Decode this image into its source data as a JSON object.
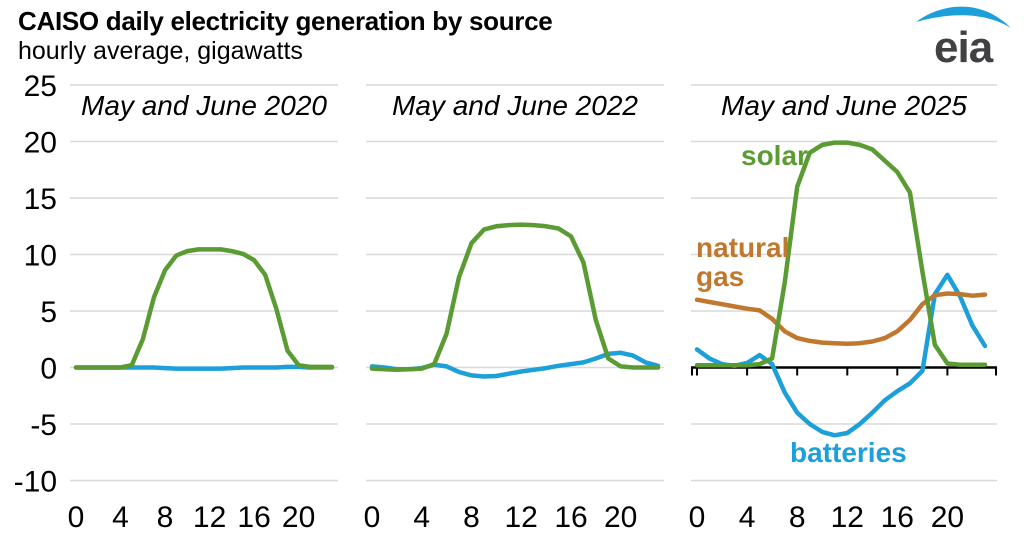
{
  "header": {
    "title": "CAISO daily electricity generation by source",
    "subtitle": "hourly average, gigawatts"
  },
  "logo": {
    "text": "eia"
  },
  "colors": {
    "solar": "#5b9b33",
    "batteries": "#1d9fd9",
    "natural_gas": "#c0782e",
    "gridline": "#d9d9d9",
    "axis": "#000000",
    "logo_text": "#414042",
    "logo_swoosh": "#1d9fd9"
  },
  "chart_data": {
    "type": "line",
    "title": "CAISO daily electricity generation by source",
    "subtitle": "hourly average, gigawatts",
    "ylabel": "gigawatts",
    "ylim": [
      -10,
      25
    ],
    "yticks": [
      25,
      20,
      15,
      10,
      5,
      0,
      -5,
      -10
    ],
    "xticks": [
      0,
      4,
      8,
      12,
      16,
      20
    ],
    "x": [
      0,
      1,
      2,
      3,
      4,
      5,
      6,
      7,
      8,
      9,
      10,
      11,
      12,
      13,
      14,
      15,
      16,
      17,
      18,
      19,
      20,
      21,
      22,
      23
    ],
    "grid": "horizontal",
    "panels": [
      {
        "title": "May and June 2020",
        "zero_axis": false,
        "series": [
          {
            "name": "batteries",
            "color_key": "batteries",
            "values": [
              0,
              0,
              0,
              0,
              0,
              0,
              0,
              0,
              -0.05,
              -0.1,
              -0.1,
              -0.1,
              -0.1,
              -0.1,
              -0.05,
              0,
              0,
              0,
              0,
              0.05,
              0.05,
              0,
              0,
              0
            ]
          },
          {
            "name": "solar",
            "color_key": "solar",
            "values": [
              0,
              0,
              0,
              0,
              0,
              0.2,
              2.5,
              6.2,
              8.6,
              9.9,
              10.3,
              10.45,
              10.45,
              10.45,
              10.3,
              10.05,
              9.5,
              8.2,
              5.2,
              1.5,
              0.2,
              0.05,
              0.05,
              0.05
            ]
          }
        ]
      },
      {
        "title": "May and June 2022",
        "zero_axis": false,
        "series": [
          {
            "name": "batteries",
            "color_key": "batteries",
            "values": [
              0.1,
              0,
              -0.15,
              -0.15,
              -0.05,
              0.25,
              0.1,
              -0.4,
              -0.7,
              -0.8,
              -0.75,
              -0.55,
              -0.35,
              -0.2,
              -0.05,
              0.15,
              0.3,
              0.45,
              0.8,
              1.2,
              1.3,
              1.05,
              0.45,
              0.15
            ]
          },
          {
            "name": "solar",
            "color_key": "solar",
            "values": [
              -0.1,
              -0.15,
              -0.2,
              -0.15,
              -0.1,
              0.3,
              3,
              8,
              11,
              12.2,
              12.5,
              12.6,
              12.65,
              12.6,
              12.5,
              12.3,
              11.6,
              9.3,
              4.2,
              0.8,
              0.1,
              0,
              0,
              0
            ]
          }
        ]
      },
      {
        "title": "May and June 2025",
        "zero_axis": true,
        "series": [
          {
            "name": "batteries",
            "color_key": "batteries",
            "values": [
              1.6,
              0.8,
              0.3,
              0.15,
              0.4,
              1.1,
              0.3,
              -2.2,
              -4.0,
              -5.0,
              -5.7,
              -6.0,
              -5.8,
              -5.0,
              -4.0,
              -2.9,
              -2.1,
              -1.4,
              -0.3,
              6.5,
              8.2,
              6.3,
              3.7,
              1.9
            ]
          },
          {
            "name": "natural gas",
            "color_key": "natural_gas",
            "values": [
              6.0,
              5.8,
              5.6,
              5.4,
              5.2,
              5.05,
              4.3,
              3.2,
              2.6,
              2.35,
              2.2,
              2.15,
              2.1,
              2.15,
              2.3,
              2.6,
              3.2,
              4.2,
              5.6,
              6.4,
              6.55,
              6.5,
              6.35,
              6.45
            ]
          },
          {
            "name": "solar",
            "color_key": "solar",
            "values": [
              0.2,
              0.2,
              0.2,
              0.2,
              0.2,
              0.3,
              0.8,
              7.5,
              16,
              19,
              19.7,
              19.9,
              19.9,
              19.7,
              19.3,
              18.3,
              17.3,
              15.5,
              8.5,
              2.0,
              0.35,
              0.25,
              0.25,
              0.25
            ]
          }
        ]
      }
    ],
    "annotations": [
      {
        "text": "solar",
        "series": "solar",
        "panel": 2
      },
      {
        "text": "natural gas",
        "series": "natural gas",
        "panel": 2
      },
      {
        "text": "batteries",
        "series": "batteries",
        "panel": 2
      }
    ],
    "legend_position": "inline-labels"
  }
}
